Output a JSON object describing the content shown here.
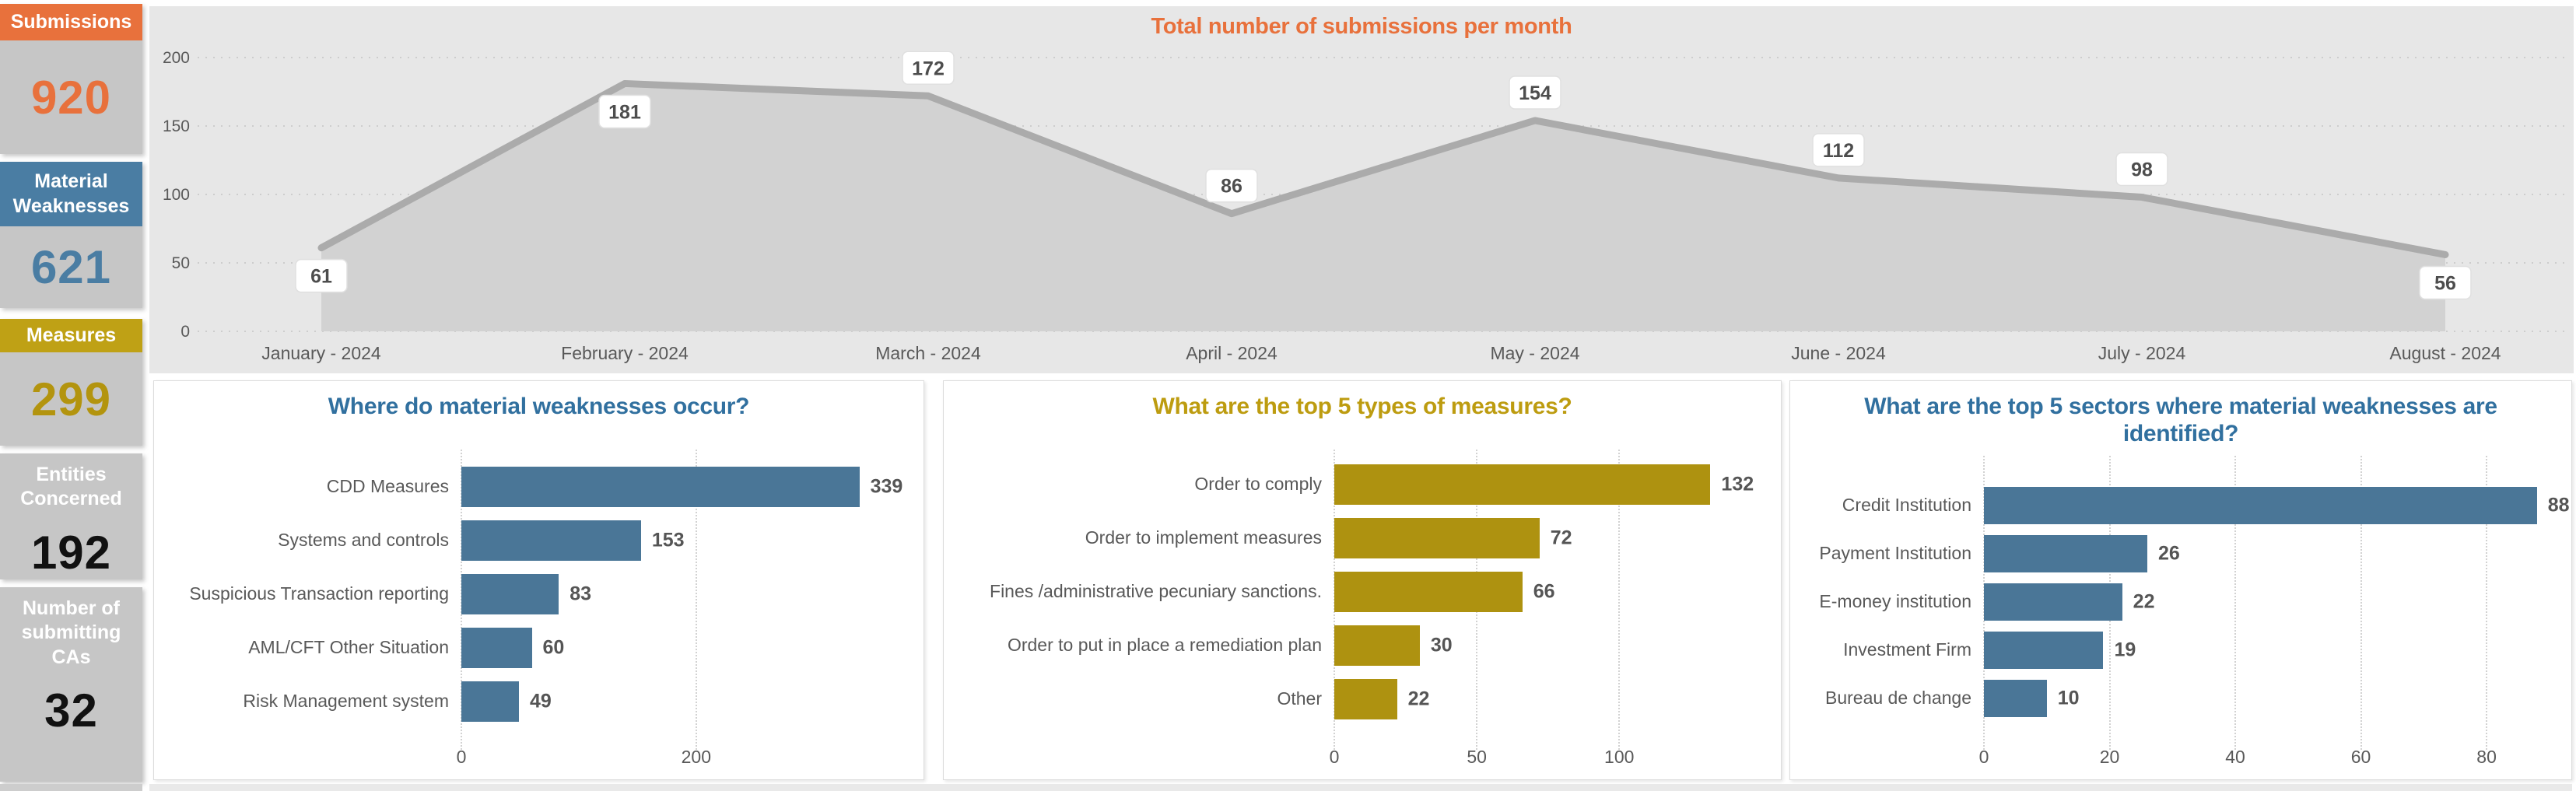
{
  "sidebar": {
    "cards": [
      {
        "id": "submissions",
        "label": "Submissions",
        "value": "920",
        "style": "banner",
        "accent": "#E8713C",
        "value_color": "#E8713C"
      },
      {
        "id": "material-weaknesses",
        "label": "Material Weaknesses",
        "value": "621",
        "style": "banner",
        "accent": "#4A7DA3",
        "value_color": "#4A7DA3"
      },
      {
        "id": "measures",
        "label": "Measures",
        "value": "299",
        "style": "banner",
        "accent": "#BFA115",
        "value_color": "#B3940E"
      },
      {
        "id": "entities-concerned",
        "label": "Entities Concerned",
        "value": "192",
        "style": "plain",
        "accent": "#C6C6C6",
        "value_color": "#111111"
      },
      {
        "id": "submitting-cas",
        "label": "Number of submitting CAs",
        "value": "32",
        "style": "plain",
        "accent": "#C6C6C6",
        "value_color": "#111111"
      }
    ]
  },
  "chart_data": [
    {
      "id": "submissions-per-month",
      "type": "area",
      "title": "Total number of submissions per month",
      "title_color": "#E8713C",
      "categories": [
        "January - 2024",
        "February - 2024",
        "March - 2024",
        "April - 2024",
        "May - 2024",
        "June - 2024",
        "July - 2024",
        "August - 2024"
      ],
      "values": [
        61,
        181,
        172,
        86,
        154,
        112,
        98,
        56
      ],
      "ylim": [
        0,
        200
      ],
      "yticks": [
        0,
        50,
        100,
        150,
        200
      ],
      "grid": "horizontal-dotted",
      "legend": "none",
      "area_color": "#D2D2D2",
      "line_color": "#ABABAB",
      "label_positions": [
        "below",
        "below",
        "above",
        "above",
        "above",
        "above",
        "above",
        "below"
      ]
    },
    {
      "id": "material-weakness-areas",
      "type": "bar",
      "orientation": "horizontal",
      "title": "Where do material weaknesses occur?",
      "title_color": "#31709F",
      "bar_color": "#4A7697",
      "categories": [
        "CDD Measures",
        "Systems and controls",
        "Suspicious Transaction reporting",
        "AML/CFT Other Situation",
        "Risk Management system"
      ],
      "values": [
        339,
        153,
        83,
        60,
        49
      ],
      "xticks": [
        0,
        200
      ],
      "xlim": [
        0,
        387
      ],
      "grid": "vertical-dotted"
    },
    {
      "id": "top-measures",
      "type": "bar",
      "orientation": "horizontal",
      "title": "What are the top 5 types of measures?",
      "title_color": "#BD9C10",
      "bar_color": "#AE9210",
      "categories": [
        "Order to comply",
        "Order to implement measures",
        "Fines /administrative pecuniary sanctions.",
        "Order to put in place a remediation plan",
        "Other"
      ],
      "values": [
        132,
        72,
        66,
        30,
        22
      ],
      "xticks": [
        0,
        50,
        100
      ],
      "xlim": [
        0,
        154
      ],
      "grid": "vertical-dotted"
    },
    {
      "id": "top-sectors",
      "type": "bar",
      "orientation": "horizontal",
      "title": "What are the top 5 sectors where material weaknesses are identified?",
      "title_color": "#31709F",
      "bar_color": "#4A7697",
      "categories": [
        "Credit Institution",
        "Payment Institution",
        "E-money institution",
        "Investment Firm",
        "Bureau de change"
      ],
      "values": [
        88,
        26,
        22,
        19,
        10
      ],
      "xticks": [
        0,
        20,
        40,
        60,
        80
      ],
      "xlim": [
        0,
        92
      ],
      "grid": "vertical-dotted"
    }
  ]
}
